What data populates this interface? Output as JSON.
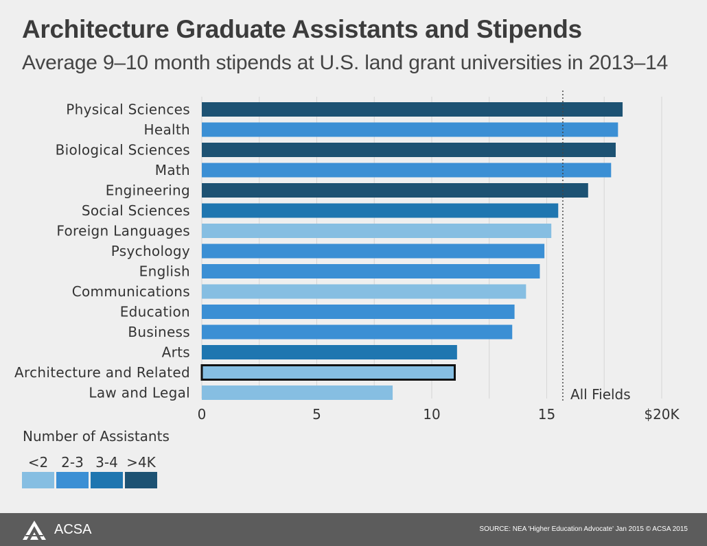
{
  "header": {
    "title": "Architecture Graduate Assistants and Stipends",
    "subtitle": "Average 9–10 month stipends at U.S. land grant universities in 2013–14"
  },
  "chart_data": {
    "type": "bar",
    "orientation": "horizontal",
    "categories": [
      "Physical Sciences",
      "Health",
      "Biological Sciences",
      "Math",
      "Engineering",
      "Social Sciences",
      "Foreign Languages",
      "Psychology",
      "English",
      "Communications",
      "Education",
      "Business",
      "Arts",
      "Architecture and Related",
      "Law and Legal"
    ],
    "values": [
      18.3,
      18.1,
      18.0,
      17.8,
      16.8,
      15.5,
      15.2,
      14.9,
      14.7,
      14.1,
      13.6,
      13.5,
      11.1,
      11.0,
      8.3
    ],
    "value_unit": "thousand USD",
    "assistant_groups": [
      ">4K",
      "2-3",
      ">4K",
      "2-3",
      ">4K",
      "3-4",
      "<2",
      "2-3",
      "2-3",
      "<2",
      "2-3",
      "2-3",
      "3-4",
      "<2",
      "<2"
    ],
    "highlighted_category": "Architecture and Related",
    "xlim": [
      0,
      20
    ],
    "x_ticks": [
      0,
      5,
      10,
      15,
      20
    ],
    "x_tick_labels": [
      "0",
      "5",
      "10",
      "15",
      "$20K"
    ],
    "grid": true,
    "reference_line": {
      "label": "All Fields",
      "value": 15.7,
      "style": "dotted"
    },
    "legend": {
      "title": "Number of Assistants",
      "placement": "bottom-left",
      "items": [
        {
          "label": "<2",
          "color": "#86bee2"
        },
        {
          "label": "2-3",
          "color": "#3b8fd4"
        },
        {
          "label": "3-4",
          "color": "#1f76b0"
        },
        {
          "label": ">4K",
          "color": "#1d5273"
        }
      ]
    }
  },
  "footer": {
    "logo_text": "ACSA",
    "source": "SOURCE: NEA 'Higher Education Advocate' Jan 2015   © ACSA 2015"
  }
}
